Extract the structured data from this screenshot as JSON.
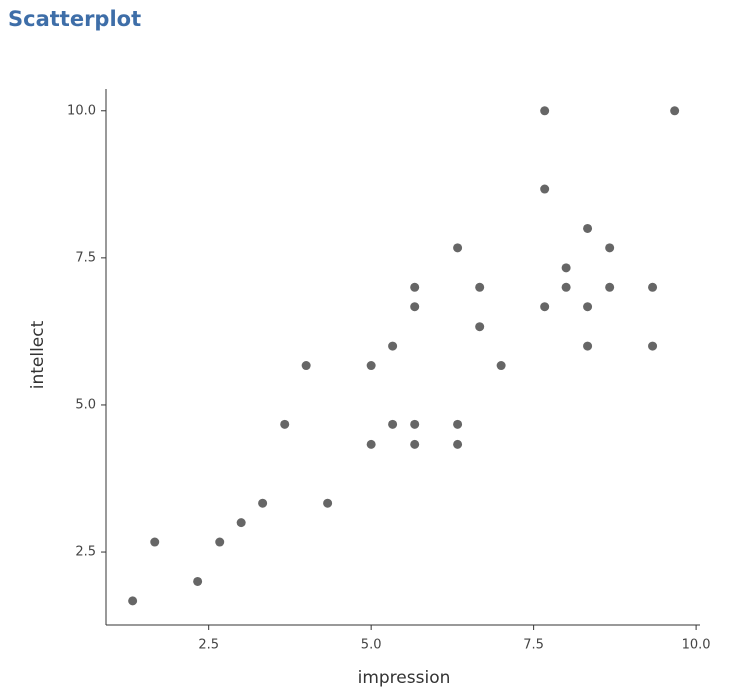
{
  "title": "Scatterplot",
  "chart_data": {
    "type": "scatter",
    "color": "#555555",
    "xlabel": "impression",
    "ylabel": "intellect",
    "xlim": [
      0.92,
      10.06
    ],
    "ylim": [
      1.26,
      10.37
    ],
    "xticks": [
      2.5,
      {
        "value": 5,
        "label": "5.0"
      },
      7.5,
      {
        "value": 10,
        "label": "10.0"
      }
    ],
    "yticks": [
      2.5,
      {
        "value": 5,
        "label": "5.0"
      },
      7.5,
      {
        "value": 10,
        "label": "10.0"
      }
    ],
    "x": [
      1.33,
      1.67,
      2.33,
      2.67,
      3.0,
      3.33,
      3.67,
      4.0,
      4.33,
      5.0,
      5.0,
      5.33,
      5.33,
      5.67,
      5.67,
      5.67,
      5.67,
      6.33,
      6.33,
      6.33,
      6.67,
      6.67,
      7.0,
      7.67,
      7.67,
      7.67,
      8.0,
      8.0,
      8.33,
      8.33,
      8.33,
      8.67,
      8.67,
      9.33,
      9.33,
      9.67
    ],
    "values": [
      1.67,
      2.67,
      2.0,
      2.67,
      3.0,
      3.33,
      4.67,
      5.67,
      3.33,
      5.67,
      4.33,
      6.0,
      4.67,
      7.0,
      6.67,
      4.67,
      4.33,
      7.67,
      4.67,
      4.33,
      7.0,
      6.33,
      5.67,
      10.0,
      8.67,
      6.67,
      7.33,
      7.0,
      8.0,
      6.67,
      6.0,
      7.67,
      7.0,
      7.0,
      6.0,
      10.0
    ]
  }
}
